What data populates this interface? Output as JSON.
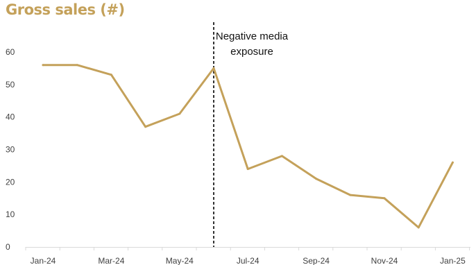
{
  "chart_data": {
    "type": "line",
    "title": "Gross sales (#)",
    "xlabel": "",
    "ylabel": "",
    "x": [
      "Jan-24",
      "Feb-24",
      "Mar-24",
      "Apr-24",
      "May-24",
      "Jun-24",
      "Jul-24",
      "Aug-24",
      "Sep-24",
      "Oct-24",
      "Nov-24",
      "Dec-24",
      "Jan-25"
    ],
    "x_tick_labels": [
      "Jan-24",
      "Mar-24",
      "May-24",
      "Jul-24",
      "Sep-24",
      "Nov-24",
      "Jan-25"
    ],
    "series": [
      {
        "values": [
          56,
          56,
          53,
          37,
          41,
          55,
          24,
          28,
          21,
          16,
          15,
          6,
          26
        ],
        "color": "#C4A15A"
      }
    ],
    "ylim": [
      0,
      60
    ],
    "yticks": [
      0,
      10,
      20,
      30,
      40,
      50,
      60
    ],
    "grid": false,
    "legend": "none",
    "title_color": "#C4A15A",
    "annotation": {
      "text_line1": "Negative media",
      "text_line2": "exposure",
      "between_x": [
        "May-24",
        "Jul-24"
      ],
      "style": "dashed vertical line",
      "color": "#000000"
    }
  }
}
